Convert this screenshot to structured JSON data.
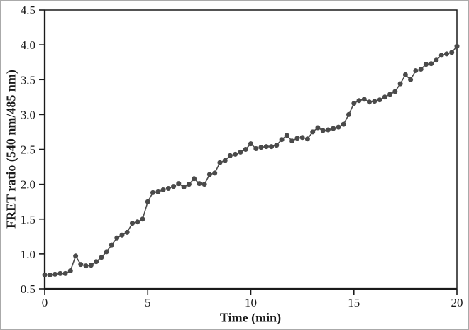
{
  "figure": {
    "background": "#ffffff",
    "outer_border_color": "#aaaaaa"
  },
  "chart_data": {
    "type": "line",
    "title": "",
    "xlabel": "Time (min)",
    "ylabel": "FRET ratio (540 nm/485 nm)",
    "xlim": [
      0,
      20
    ],
    "ylim": [
      0.5,
      4.5
    ],
    "x_ticks": [
      0,
      5,
      10,
      15,
      20
    ],
    "x_tick_labels": [
      "0",
      "5",
      "10",
      "15",
      "20"
    ],
    "y_ticks": [
      0.5,
      1.0,
      1.5,
      2.0,
      2.5,
      3.0,
      3.5,
      4.0,
      4.5
    ],
    "y_tick_labels": [
      "0.5",
      "1.0",
      "1.5",
      "2.0",
      "2.5",
      "3.0",
      "3.5",
      "4.0",
      "4.5"
    ],
    "grid": false,
    "legend": null,
    "frame": "full-box",
    "marker": "circle",
    "marker_size_px": 7,
    "line_color": "#4a4a4a",
    "axis_color": "#1a1a1a",
    "series": [
      {
        "name": "FRET ratio",
        "x": [
          0,
          0.25,
          0.5,
          0.75,
          1,
          1.25,
          1.5,
          1.75,
          2,
          2.25,
          2.5,
          2.75,
          3,
          3.25,
          3.5,
          3.75,
          4,
          4.25,
          4.5,
          4.75,
          5,
          5.25,
          5.5,
          5.75,
          6,
          6.25,
          6.5,
          6.75,
          7,
          7.25,
          7.5,
          7.75,
          8,
          8.25,
          8.5,
          8.75,
          9,
          9.25,
          9.5,
          9.75,
          10,
          10.25,
          10.5,
          10.75,
          11,
          11.25,
          11.5,
          11.75,
          12,
          12.25,
          12.5,
          12.75,
          13,
          13.25,
          13.5,
          13.75,
          14,
          14.25,
          14.5,
          14.75,
          15,
          15.25,
          15.5,
          15.75,
          16,
          16.25,
          16.5,
          16.75,
          17,
          17.25,
          17.5,
          17.75,
          18,
          18.25,
          18.5,
          18.75,
          19,
          19.25,
          19.5,
          19.75,
          20
        ],
        "y": [
          0.7,
          0.7,
          0.71,
          0.72,
          0.72,
          0.76,
          0.97,
          0.85,
          0.83,
          0.84,
          0.89,
          0.95,
          1.03,
          1.13,
          1.23,
          1.27,
          1.31,
          1.44,
          1.46,
          1.5,
          1.75,
          1.88,
          1.89,
          1.92,
          1.94,
          1.97,
          2.01,
          1.96,
          2.0,
          2.08,
          2.01,
          2.0,
          2.14,
          2.16,
          2.31,
          2.34,
          2.41,
          2.43,
          2.46,
          2.5,
          2.58,
          2.51,
          2.53,
          2.54,
          2.54,
          2.56,
          2.64,
          2.7,
          2.62,
          2.66,
          2.67,
          2.65,
          2.75,
          2.81,
          2.77,
          2.78,
          2.8,
          2.82,
          2.86,
          3.0,
          3.16,
          3.2,
          3.22,
          3.18,
          3.19,
          3.21,
          3.25,
          3.29,
          3.33,
          3.44,
          3.57,
          3.5,
          3.63,
          3.65,
          3.72,
          3.73,
          3.78,
          3.85,
          3.87,
          3.89,
          3.98
        ]
      }
    ]
  }
}
